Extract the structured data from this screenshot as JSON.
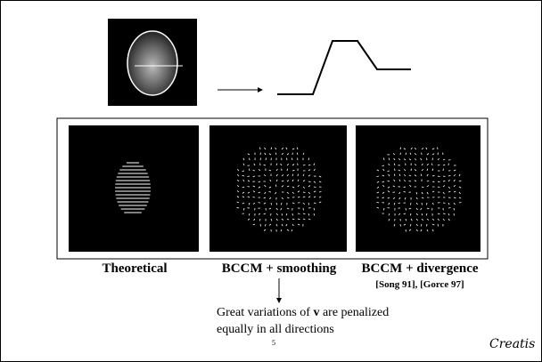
{
  "panels": [
    {
      "label": "Theoretical"
    },
    {
      "label": "BCCM + smoothing"
    },
    {
      "label": "BCCM + divergence",
      "citation": "[Song 91], [Gorce 97]"
    }
  ],
  "note": {
    "parts": [
      "Great variations of ",
      "v",
      " are penalized",
      "equally in all directions"
    ]
  },
  "page_number": "5",
  "logo": "Creatis"
}
